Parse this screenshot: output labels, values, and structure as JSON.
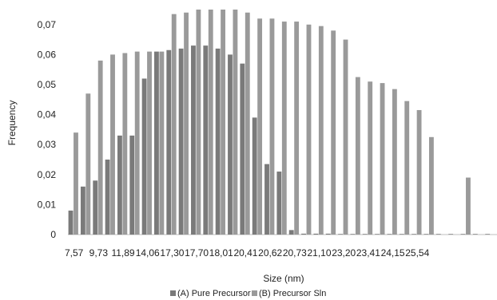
{
  "chart_data": {
    "type": "bar",
    "title": "",
    "xlabel": "Size (nm)",
    "ylabel": "Frequency",
    "ylim": [
      0,
      0.075
    ],
    "yticks": [
      "0",
      "0,01",
      "0,02",
      "0,03",
      "0,04",
      "0,05",
      "0,06",
      "0,07"
    ],
    "ytick_values": [
      0,
      0.01,
      0.02,
      0.03,
      0.04,
      0.05,
      0.06,
      0.07
    ],
    "grid": false,
    "legend_position": "bottom",
    "xtick_labels": [
      "7,57",
      "9,73",
      "11,89",
      "14,06",
      "17,30",
      "17,70",
      "18,01",
      "20,41",
      "20,62",
      "20,73",
      "21,10",
      "23,20",
      "23,41",
      "24,15",
      "25,54"
    ],
    "category_count": 35,
    "series": [
      {
        "name": "(A)  Pure Precursor",
        "color": "#7a7a7a",
        "values": [
          0.008,
          0.016,
          0.018,
          0.025,
          0.033,
          0.033,
          0.052,
          0.061,
          0.0615,
          0.062,
          0.063,
          0.063,
          0.062,
          0.06,
          0.057,
          0.039,
          0.0235,
          0.021,
          0.0015,
          0.0003,
          0.0003,
          0.0003,
          0.0002,
          0.0002,
          0.0002,
          0.0002,
          0.0002,
          0.0002,
          0.0002,
          0.0002,
          0.0002,
          0.0002,
          0.0002,
          0.0002,
          0.0002
        ]
      },
      {
        "name": "(B) Precursor Sln",
        "color": "#9a9a9a",
        "values": [
          0.034,
          0.047,
          0.058,
          0.06,
          0.0605,
          0.061,
          0.061,
          0.061,
          0.0735,
          0.074,
          0.075,
          0.075,
          0.075,
          0.075,
          0.074,
          0.072,
          0.072,
          0.071,
          0.071,
          0.07,
          0.0695,
          0.068,
          0.065,
          0.0525,
          0.051,
          0.0505,
          0.0485,
          0.0445,
          0.0415,
          0.0325,
          0.0,
          0.0,
          0.019,
          0.0,
          0.0
        ]
      }
    ]
  }
}
